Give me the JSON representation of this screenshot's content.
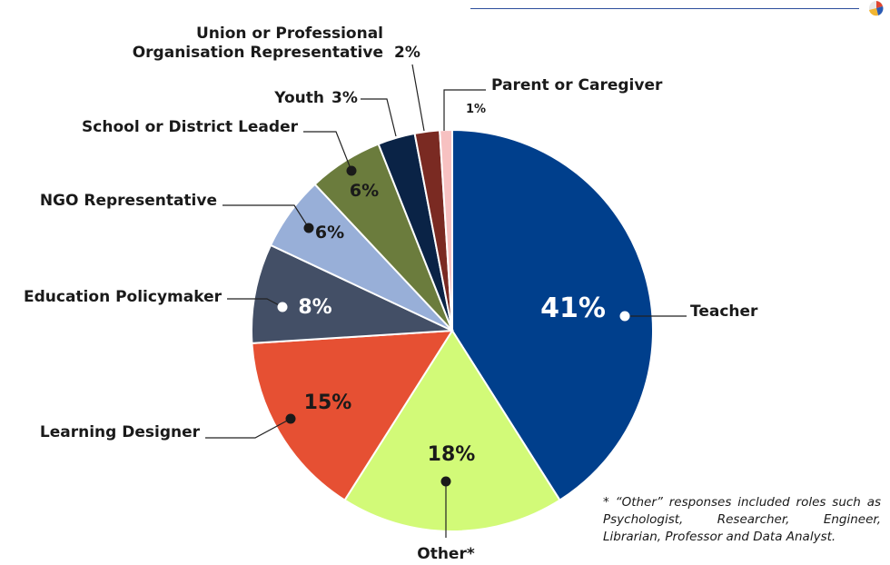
{
  "chart_data": {
    "type": "pie",
    "slices": [
      {
        "label": "Teacher",
        "value": 41,
        "display": "41%",
        "color": "#003f8c"
      },
      {
        "label": "Other*",
        "value": 18,
        "display": "18%",
        "color": "#d2fa78"
      },
      {
        "label": "Learning Designer",
        "value": 15,
        "display": "15%",
        "color": "#e65033"
      },
      {
        "label": "Education Policymaker",
        "value": 8,
        "display": "8%",
        "color": "#434f66"
      },
      {
        "label": "NGO Representative",
        "value": 6,
        "display": "6%",
        "color": "#98afd8"
      },
      {
        "label": "School or District Leader",
        "value": 6,
        "display": "6%",
        "color": "#6b7c3d"
      },
      {
        "label": "Youth",
        "value": 3,
        "display": "3%",
        "color": "#0a2346"
      },
      {
        "label": "Union or Professional Organisation Representative",
        "value": 2,
        "display": "2%",
        "color": "#7a2a22"
      },
      {
        "label": "Parent or Caregiver",
        "value": 1,
        "display": "1%",
        "color": "#f7c1c1"
      }
    ],
    "label_lines": {
      "union_line1": "Union or Professional",
      "union_line2": "Organisation Representative"
    }
  },
  "footnote": "* “Other” responses included roles such as Psychologist, Researcher, Engineer, Librarian, Professor and Data Analyst."
}
